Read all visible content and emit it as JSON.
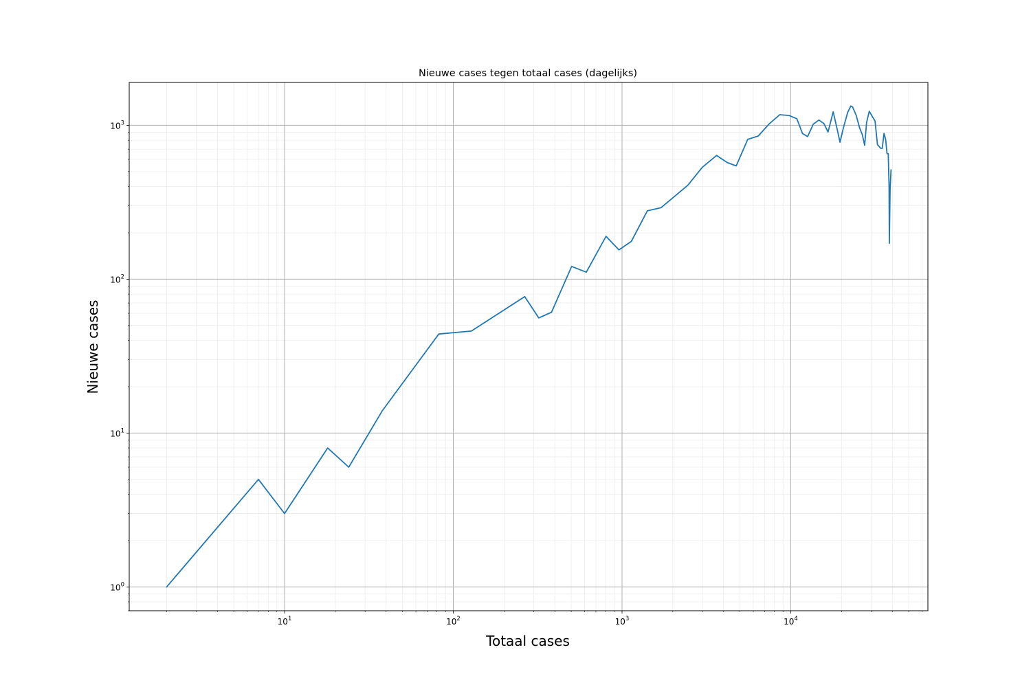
{
  "chart_data": {
    "type": "line",
    "title": "Nieuwe cases tegen totaal cases (dagelijks)",
    "xlabel": "Totaal cases",
    "ylabel": "Nieuwe cases",
    "xscale": "log",
    "yscale": "log",
    "xlim": [
      1.2,
      65000
    ],
    "ylim": [
      0.7,
      1900
    ],
    "grid": {
      "major": true,
      "minor": true
    },
    "x_ticks": [
      {
        "base": "10",
        "exp": "1",
        "value": 10
      },
      {
        "base": "10",
        "exp": "2",
        "value": 100
      },
      {
        "base": "10",
        "exp": "3",
        "value": 1000
      },
      {
        "base": "10",
        "exp": "4",
        "value": 10000
      }
    ],
    "y_ticks": [
      {
        "base": "10",
        "exp": "0",
        "value": 1
      },
      {
        "base": "10",
        "exp": "1",
        "value": 10
      },
      {
        "base": "10",
        "exp": "2",
        "value": 100
      },
      {
        "base": "10",
        "exp": "3",
        "value": 1000
      }
    ],
    "colors": {
      "line": "#1f77b4",
      "major_grid": "#b0b0b0",
      "minor_grid": "#ececec"
    },
    "series": [
      {
        "x": [
          2,
          7,
          10,
          18,
          24,
          38,
          82,
          128,
          265,
          321,
          382,
          503,
          614,
          804,
          959,
          1135,
          1413,
          1705,
          2051,
          2460,
          2994,
          3631,
          4204,
          4749,
          5560,
          6412,
          7431,
          8603,
          9762,
          10866,
          11750,
          12595,
          13614,
          14697,
          15723,
          16627,
          17851,
          18803,
          19580,
          20549,
          21762,
          22696,
          23249,
          24413,
          25587,
          26551,
          27419,
          28153,
          29214,
          30449,
          31589,
          32655,
          33405,
          34134,
          34842,
          35729,
          36535,
          37190,
          37845,
          38245,
          38416,
          38802,
          39316
        ],
        "y": [
          1,
          5,
          3,
          8,
          6,
          14,
          44,
          46,
          77,
          56,
          61,
          121,
          111,
          190,
          155,
          176,
          278,
          292,
          346,
          409,
          534,
          637,
          573,
          545,
          811,
          852,
          1019,
          1172,
          1159,
          1104,
          884,
          845,
          1019,
          1083,
          1026,
          904,
          1224,
          952,
          777,
          969,
          1213,
          1335,
          1316,
          1164,
          964,
          868,
          741,
          1043,
          1235,
          1140,
          1066,
          750,
          729,
          709,
          708,
          887,
          806,
          655,
          655,
          400,
          171,
          386,
          514
        ]
      }
    ]
  }
}
